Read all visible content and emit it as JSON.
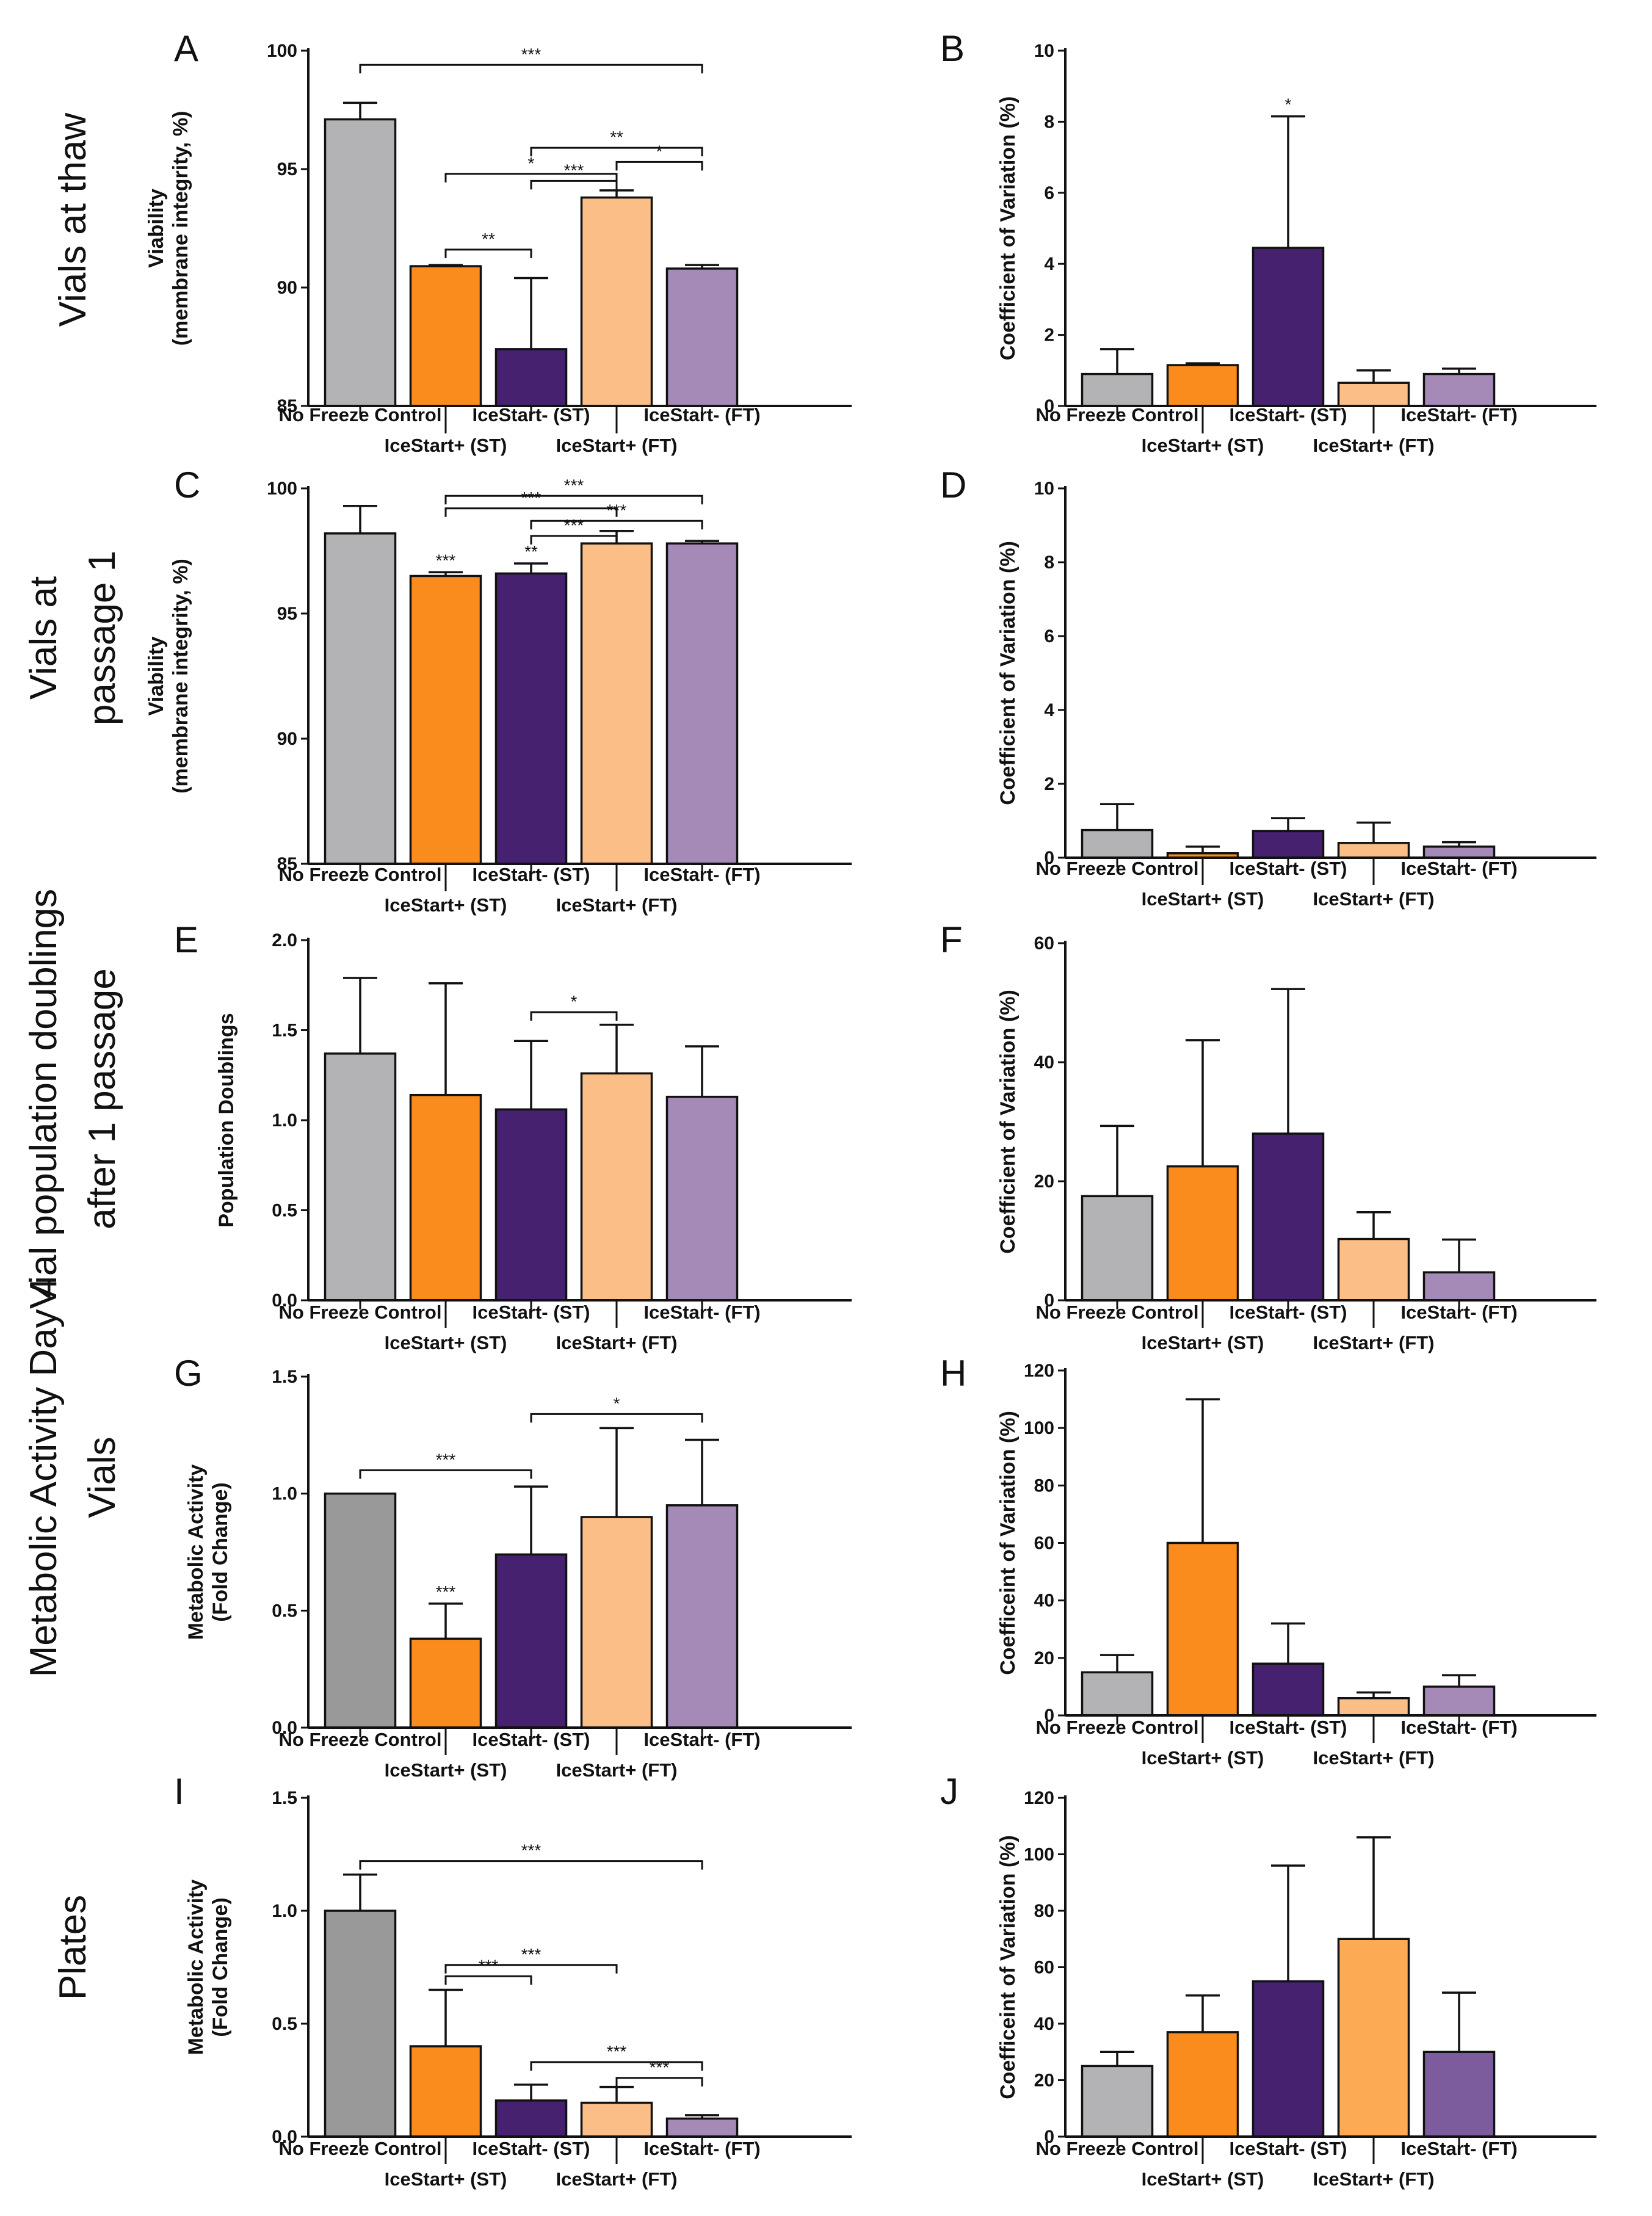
{
  "row_labels": [
    [
      "Vials at thaw"
    ],
    [
      "Vials at",
      "passage 1"
    ],
    [
      "Vial population doublings",
      "after 1 passage"
    ],
    [
      "Metabolic Activity Day 4",
      "Vials"
    ],
    [
      "Plates"
    ]
  ],
  "categories": [
    "No Freeze Control",
    "IceStart+ (ST)",
    "IceStart- (ST)",
    "IceStart+ (FT)",
    "IceStart- (FT)"
  ],
  "colors": {
    "gray": "#b3b3b6",
    "gray_dark": "#999999",
    "orange": "#fa8c1e",
    "purple_dark": "#452170",
    "peach": "#fcbe87",
    "lavender": "#a58ab8",
    "orange_alt": "#fcaa54",
    "purple_alt": "#7d5c9e"
  },
  "chart_data": [
    {
      "panel": "A",
      "type": "bar",
      "ylabel": [
        "Viability",
        "(membrane integrity, %)"
      ],
      "ylim": [
        85,
        100
      ],
      "yticks": [
        85,
        90,
        95,
        100
      ],
      "ytick_labels": [
        "85",
        "90",
        "95",
        "100"
      ],
      "values": [
        97.1,
        90.9,
        87.4,
        93.8,
        90.8
      ],
      "errors": [
        0.7,
        0.05,
        3.0,
        0.3,
        0.15
      ],
      "bar_colors": [
        "gray",
        "orange",
        "purple_dark",
        "peach",
        "lavender"
      ],
      "bar_labels": [],
      "brackets": [
        {
          "from": 0,
          "to": 4,
          "y": 99.4,
          "label": "***"
        },
        {
          "from": 1,
          "to": 3,
          "y": 94.8,
          "label": "*"
        },
        {
          "from": 1,
          "to": 2,
          "y": 91.6,
          "label": "**"
        },
        {
          "from": 2,
          "to": 4,
          "y": 95.9,
          "label": "**"
        },
        {
          "from": 2,
          "to": 3,
          "y": 94.5,
          "label": "***"
        },
        {
          "from": 3,
          "to": 4,
          "y": 95.3,
          "label": "*"
        }
      ]
    },
    {
      "panel": "B",
      "type": "bar",
      "ylabel": [
        "Coefficient of Variation (%)"
      ],
      "ylim": [
        0,
        10
      ],
      "yticks": [
        0,
        2,
        4,
        6,
        8,
        10
      ],
      "ytick_labels": [
        "0",
        "2",
        "4",
        "6",
        "8",
        "10"
      ],
      "values": [
        0.9,
        1.15,
        4.45,
        0.65,
        0.9
      ],
      "errors": [
        0.7,
        0.05,
        3.7,
        0.35,
        0.15
      ],
      "bar_colors": [
        "gray",
        "orange",
        "purple_dark",
        "peach",
        "lavender"
      ],
      "bar_labels": [
        {
          "index": 2,
          "label": "*"
        }
      ],
      "brackets": []
    },
    {
      "panel": "C",
      "type": "bar",
      "ylabel": [
        "Viability",
        "(membrane integrity, %)"
      ],
      "ylim": [
        85,
        100
      ],
      "yticks": [
        85,
        90,
        95,
        100
      ],
      "ytick_labels": [
        "85",
        "90",
        "95",
        "100"
      ],
      "values": [
        98.2,
        96.5,
        96.6,
        97.8,
        97.8
      ],
      "errors": [
        1.1,
        0.15,
        0.4,
        0.5,
        0.1
      ],
      "bar_colors": [
        "gray",
        "orange",
        "purple_dark",
        "peach",
        "lavender"
      ],
      "bar_labels": [
        {
          "index": 1,
          "label": "***"
        },
        {
          "index": 2,
          "label": "**"
        }
      ],
      "brackets": [
        {
          "from": 1,
          "to": 4,
          "y": 99.7,
          "label": "***"
        },
        {
          "from": 1,
          "to": 3,
          "y": 99.2,
          "label": "***"
        },
        {
          "from": 2,
          "to": 4,
          "y": 98.7,
          "label": "***"
        },
        {
          "from": 2,
          "to": 3,
          "y": 98.1,
          "label": "***"
        }
      ]
    },
    {
      "panel": "D",
      "type": "bar",
      "ylabel": [
        "Coefficient of Variation (%)"
      ],
      "ylim": [
        0,
        10
      ],
      "yticks": [
        0,
        2,
        4,
        6,
        8,
        10
      ],
      "ytick_labels": [
        "0",
        "2",
        "4",
        "6",
        "8",
        "10"
      ],
      "values": [
        0.75,
        0.12,
        0.72,
        0.4,
        0.3
      ],
      "errors": [
        0.7,
        0.18,
        0.35,
        0.55,
        0.12
      ],
      "bar_colors": [
        "gray",
        "orange",
        "purple_dark",
        "peach",
        "lavender"
      ],
      "bar_labels": [],
      "brackets": []
    },
    {
      "panel": "E",
      "type": "bar",
      "ylabel": [
        "Population Doublings"
      ],
      "ylim": [
        0,
        2
      ],
      "yticks": [
        0,
        0.5,
        1,
        1.5,
        2
      ],
      "ytick_labels": [
        "0.0",
        "0.5",
        "1.0",
        "1.5",
        "2.0"
      ],
      "values": [
        1.37,
        1.14,
        1.06,
        1.26,
        1.13
      ],
      "errors": [
        0.42,
        0.62,
        0.38,
        0.27,
        0.28
      ],
      "bar_colors": [
        "gray",
        "orange",
        "purple_dark",
        "peach",
        "lavender"
      ],
      "bar_labels": [],
      "brackets": [
        {
          "from": 2,
          "to": 3,
          "y": 1.6,
          "label": "*"
        }
      ]
    },
    {
      "panel": "F",
      "type": "bar",
      "ylabel": [
        "Coefficient of Variation (%)"
      ],
      "ylim": [
        0,
        60
      ],
      "yticks": [
        0,
        20,
        40,
        60
      ],
      "ytick_labels": [
        "0",
        "20",
        "40",
        "60"
      ],
      "values": [
        17.5,
        22.5,
        28,
        10.3,
        4.7
      ],
      "errors": [
        11.8,
        21.2,
        24.3,
        4.5,
        5.5
      ],
      "bar_colors": [
        "gray",
        "orange",
        "purple_dark",
        "peach",
        "lavender"
      ],
      "bar_labels": [],
      "brackets": []
    },
    {
      "panel": "G",
      "type": "bar",
      "ylabel": [
        "Metabolic Activity",
        "(Fold Change)"
      ],
      "ylim": [
        0,
        1.5
      ],
      "yticks": [
        0,
        0.5,
        1,
        1.5
      ],
      "ytick_labels": [
        "0.0",
        "0.5",
        "1.0",
        "1.5"
      ],
      "values": [
        1.0,
        0.38,
        0.74,
        0.9,
        0.95
      ],
      "errors": [
        0,
        0.15,
        0.29,
        0.38,
        0.28
      ],
      "bar_colors": [
        "gray_dark",
        "orange",
        "purple_dark",
        "peach",
        "lavender"
      ],
      "bar_labels": [
        {
          "index": 1,
          "label": "***"
        }
      ],
      "brackets": [
        {
          "from": 0,
          "to": 2,
          "y": 1.1,
          "label": "***"
        },
        {
          "from": 2,
          "to": 4,
          "y": 1.34,
          "label": "*"
        }
      ]
    },
    {
      "panel": "H",
      "type": "bar",
      "ylabel": [
        "Coefficeint of Variation (%)"
      ],
      "ylim": [
        0,
        120
      ],
      "yticks": [
        0,
        20,
        40,
        60,
        80,
        100,
        120
      ],
      "ytick_labels": [
        "0",
        "20",
        "40",
        "60",
        "80",
        "100",
        "120"
      ],
      "values": [
        15,
        60,
        18,
        6,
        10
      ],
      "errors": [
        6,
        50,
        14,
        2,
        4
      ],
      "bar_colors": [
        "gray",
        "orange",
        "purple_dark",
        "peach",
        "lavender"
      ],
      "bar_labels": [],
      "brackets": []
    },
    {
      "panel": "I",
      "type": "bar",
      "ylabel": [
        "Metabolic Activity",
        "(Fold Change)"
      ],
      "ylim": [
        0,
        1.5
      ],
      "yticks": [
        0,
        0.5,
        1,
        1.5
      ],
      "ytick_labels": [
        "0.0",
        "0.5",
        "1.0",
        "1.5"
      ],
      "values": [
        1.0,
        0.4,
        0.16,
        0.15,
        0.08
      ],
      "errors": [
        0.16,
        0.25,
        0.07,
        0.07,
        0.015
      ],
      "bar_colors": [
        "gray_dark",
        "orange",
        "purple_dark",
        "peach",
        "lavender"
      ],
      "bar_labels": [],
      "brackets": [
        {
          "from": 0,
          "to": 4,
          "y": 1.22,
          "label": "***"
        },
        {
          "from": 1,
          "to": 3,
          "y": 0.76,
          "label": "***"
        },
        {
          "from": 1,
          "to": 2,
          "y": 0.71,
          "label": "***"
        },
        {
          "from": 2,
          "to": 4,
          "y": 0.33,
          "label": "***"
        },
        {
          "from": 3,
          "to": 4,
          "y": 0.26,
          "label": "***"
        }
      ]
    },
    {
      "panel": "J",
      "type": "bar",
      "ylabel": [
        "Coefficeint of Variation (%)"
      ],
      "ylim": [
        0,
        120
      ],
      "yticks": [
        0,
        20,
        40,
        60,
        80,
        100,
        120
      ],
      "ytick_labels": [
        "0",
        "20",
        "40",
        "60",
        "80",
        "100",
        "120"
      ],
      "values": [
        25,
        37,
        55,
        70,
        30
      ],
      "errors": [
        5,
        13,
        41,
        36,
        21
      ],
      "bar_colors": [
        "gray",
        "orange",
        "purple_dark",
        "orange_alt",
        "purple_alt"
      ],
      "bar_labels": [],
      "brackets": []
    }
  ]
}
